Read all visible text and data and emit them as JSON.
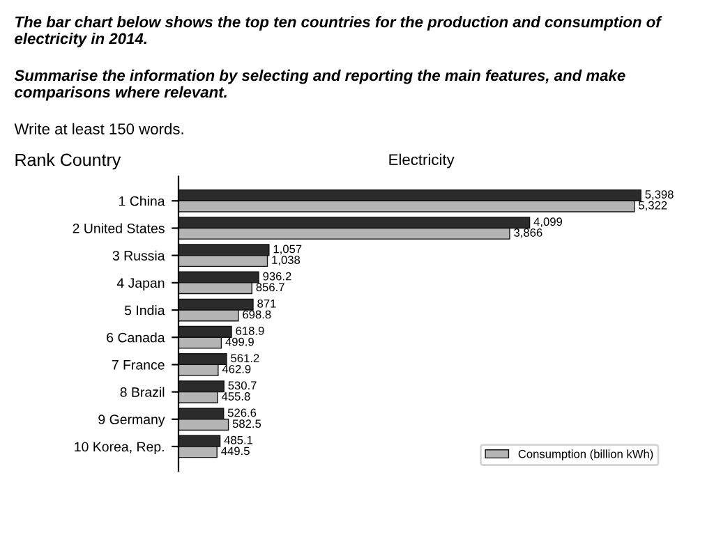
{
  "chart_data": {
    "type": "bar",
    "orientation": "horizontal",
    "title": "Electricity",
    "ylabel": "Rank Country",
    "annotations": [
      "The bar chart below shows the top ten countries for the production and consumption of electricity in 2014.",
      "Summarise the information by selecting and reporting the main features, and make comparisons where relevant.",
      "Write at least 150 words."
    ],
    "categories": [
      "1 China",
      "2 United States",
      "3 Russia",
      "4 Japan",
      "5 India",
      "6 Canada",
      "7 France",
      "8 Brazil",
      "9 Germany",
      "10 Korea, Rep."
    ],
    "series": [
      {
        "color": "#2b2b2b",
        "values": [
          5398,
          4099,
          1057,
          936.2,
          871,
          618.9,
          561.2,
          530.7,
          526.6,
          485.1
        ],
        "value_labels": [
          "5,398",
          "4,099",
          "1,057",
          "936.2",
          "871",
          "618.9",
          "561.2",
          "530.7",
          "526.6",
          "485.1"
        ]
      },
      {
        "name": "Consumption (billion kWh)",
        "color": "#b4b4b4",
        "values": [
          5322,
          3866,
          1038,
          856.7,
          698.8,
          499.9,
          462.9,
          455.8,
          582.5,
          449.5
        ],
        "value_labels": [
          "5,322",
          "3,866",
          "1,038",
          "856.7",
          "698.8",
          "499.9",
          "462.9",
          "455.8",
          "582.5",
          "449.5"
        ]
      }
    ],
    "legend": "bottom right",
    "tick_labels": "y",
    "grid": false
  }
}
